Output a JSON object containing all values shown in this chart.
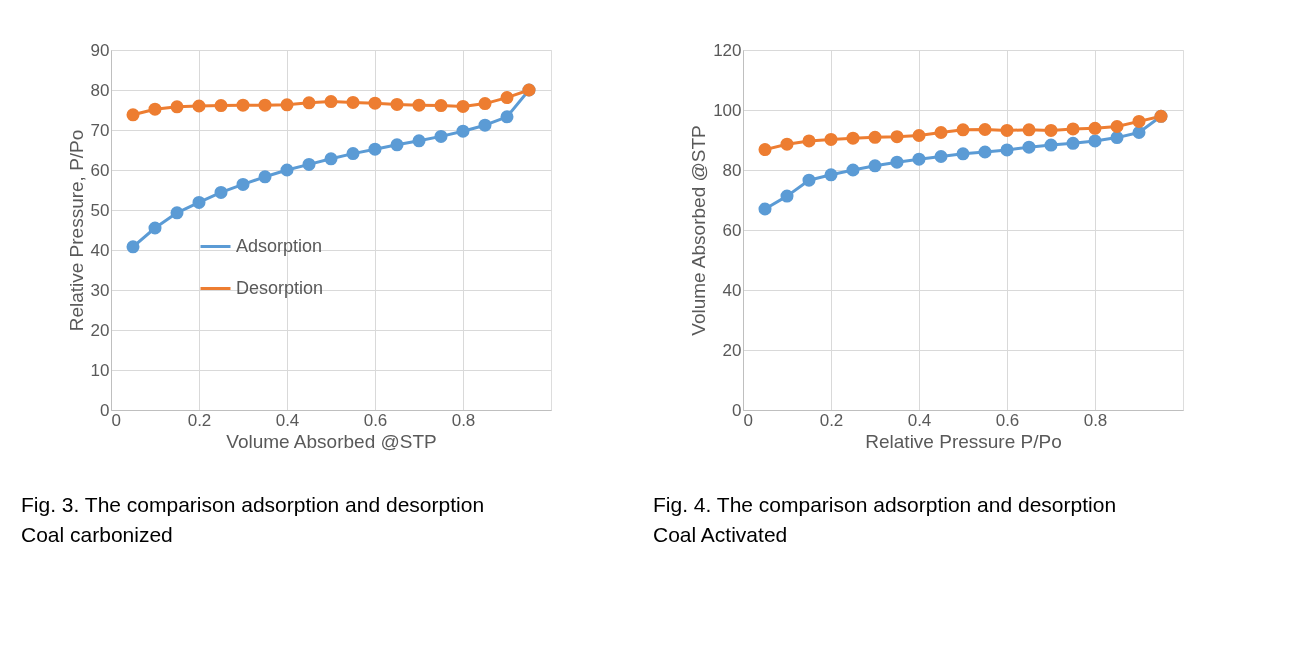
{
  "chart_data": [
    {
      "type": "line",
      "xlabel": "Volume Absorbed @STP",
      "ylabel": "Relative Pressure, P/Po",
      "xlim": [
        0,
        1
      ],
      "xticks": [
        0,
        0.2,
        0.4,
        0.6,
        0.8
      ],
      "ylim": [
        0,
        90
      ],
      "yticks": [
        0,
        10,
        20,
        30,
        40,
        50,
        60,
        70,
        80,
        90
      ],
      "grid": true,
      "legend": "left",
      "marker": "circle",
      "line_style": "solid",
      "x": [
        0.05,
        0.1,
        0.15,
        0.2,
        0.25,
        0.3,
        0.35,
        0.4,
        0.45,
        0.5,
        0.55,
        0.6,
        0.65,
        0.7,
        0.75,
        0.8,
        0.85,
        0.9,
        0.95
      ],
      "series": [
        {
          "name": "Adsorption",
          "color": "#5b9bd5",
          "values": [
            40.8,
            45.5,
            49.3,
            51.9,
            54.4,
            56.4,
            58.3,
            60.0,
            61.4,
            62.8,
            64.1,
            65.2,
            66.3,
            67.3,
            68.4,
            69.7,
            71.2,
            73.3,
            80.0
          ]
        },
        {
          "name": "Desorption",
          "color": "#ed7d31",
          "values": [
            73.8,
            75.2,
            75.8,
            76.0,
            76.1,
            76.2,
            76.2,
            76.3,
            76.8,
            77.1,
            76.9,
            76.7,
            76.4,
            76.2,
            76.1,
            75.9,
            76.6,
            78.1,
            80.0
          ]
        }
      ],
      "annotations": [
        "Fig. 3. The comparison adsorption and desorption Coal carbonized"
      ]
    },
    {
      "type": "line",
      "xlabel": "Relative Pressure P/Po",
      "ylabel": "Volume Absorbed @STP",
      "xlim": [
        0,
        1
      ],
      "xticks": [
        0,
        0.2,
        0.4,
        0.6,
        0.8
      ],
      "ylim": [
        0,
        120
      ],
      "yticks": [
        0,
        20,
        40,
        60,
        80,
        100,
        120
      ],
      "grid": true,
      "legend": "left",
      "marker": "circle",
      "line_style": "solid",
      "x": [
        0.05,
        0.1,
        0.15,
        0.2,
        0.25,
        0.3,
        0.35,
        0.4,
        0.45,
        0.5,
        0.55,
        0.6,
        0.65,
        0.7,
        0.75,
        0.8,
        0.85,
        0.9,
        0.95
      ],
      "series": [
        {
          "name": "Adsorption",
          "color": "#5b9bd5",
          "values": [
            67.0,
            71.3,
            76.6,
            78.4,
            80.0,
            81.4,
            82.6,
            83.6,
            84.5,
            85.4,
            86.0,
            86.7,
            87.6,
            88.3,
            88.9,
            89.7,
            90.8,
            92.5,
            97.9
          ]
        },
        {
          "name": "Desorption",
          "color": "#ed7d31",
          "values": [
            86.8,
            88.6,
            89.7,
            90.2,
            90.6,
            90.9,
            91.1,
            91.5,
            92.5,
            93.4,
            93.5,
            93.2,
            93.4,
            93.2,
            93.7,
            93.9,
            94.5,
            96.2,
            97.9
          ]
        }
      ],
      "annotations": [
        "Fig. 4. The comparison adsorption and desorption Coal Activated"
      ]
    }
  ]
}
